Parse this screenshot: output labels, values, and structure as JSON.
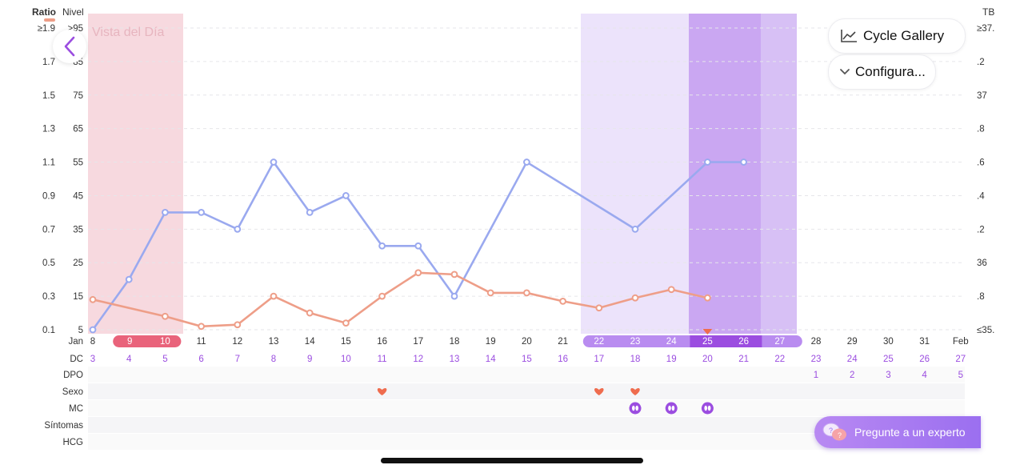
{
  "header": {
    "left_axis_title": "Ratio",
    "level_axis_title": "Nivel",
    "right_axis_title": "TB",
    "day_view_label": "Vista del Día"
  },
  "buttons": {
    "cycle_gallery": "Cycle Gallery",
    "configure": "Configura...",
    "expert": "Pregunte a un experto"
  },
  "colors": {
    "blue_series": "#9aa9ef",
    "orange_series": "#ee9e88",
    "period": "#f7d9df",
    "fertile_light": "#ece3fb",
    "fertile_mid": "#d7c0f5",
    "ovulation_dark": "#caa7f2",
    "accent_purple": "#9b4de0",
    "period_pill": "#e9637b"
  },
  "chart_data": {
    "type": "line",
    "title": "",
    "left_ticks": [
      "≥1.9",
      "1.7",
      "1.5",
      "1.3",
      "1.1",
      "0.9",
      "0.7",
      "0.5",
      "0.3",
      "0.1"
    ],
    "level_ticks": [
      ">95",
      "85",
      "75",
      "65",
      "55",
      "45",
      "35",
      "25",
      "15",
      "5"
    ],
    "right_ticks": [
      "≥37.",
      ".2",
      "37",
      ".8",
      ".6",
      ".4",
      ".2",
      "36",
      ".8",
      "≤35."
    ],
    "ylim": [
      5,
      95
    ],
    "x": [
      "8",
      "9",
      "10",
      "11",
      "12",
      "13",
      "14",
      "15",
      "16",
      "17",
      "18",
      "19",
      "20",
      "21",
      "22",
      "23",
      "24",
      "25",
      "26",
      "27",
      "28",
      "29",
      "30",
      "31",
      "Feb"
    ],
    "month_label": "Jan",
    "series": [
      {
        "values": [
          5,
          20,
          40,
          40,
          35,
          55,
          40,
          45,
          30,
          30,
          15,
          null,
          55,
          null,
          null,
          35,
          null,
          55,
          55,
          null,
          null,
          null,
          null,
          null,
          null
        ]
      },
      {
        "values": [
          14,
          null,
          9,
          6,
          6.5,
          15,
          10,
          7,
          15,
          22,
          21.5,
          16,
          16,
          13.5,
          11.5,
          14.5,
          17,
          14.5,
          null,
          null,
          null,
          null,
          null,
          null,
          null
        ]
      }
    ],
    "rows": {
      "dc_label": "DC",
      "dc": [
        "3",
        "4",
        "5",
        "6",
        "7",
        "8",
        "9",
        "10",
        "11",
        "12",
        "13",
        "14",
        "15",
        "16",
        "17",
        "18",
        "19",
        "20",
        "21",
        "22",
        "23",
        "24",
        "25",
        "26",
        "27"
      ],
      "dpo_label": "DPO",
      "dpo": [
        "",
        "",
        "",
        "",
        "",
        "",
        "",
        "",
        "",
        "",
        "",
        "",
        "",
        "",
        "",
        "",
        "",
        "",
        "",
        "",
        "1",
        "2",
        "3",
        "4",
        "5"
      ],
      "sexo_label": "Sexo",
      "mc_label": "MC",
      "sintomas_label": "Síntomas",
      "hcg_label": "HCG"
    },
    "period_pill_days": [
      "9",
      "10"
    ],
    "fertile_pill_days": [
      "22",
      "23",
      "24",
      "25",
      "26",
      "27"
    ],
    "heart_days": [
      "16",
      "22",
      "23"
    ],
    "mc_days": [
      "23",
      "24",
      "25"
    ],
    "today": "25"
  },
  "icons": {
    "back": "chevron-left-icon",
    "gallery": "line-chart-icon",
    "configure": "chevron-down-icon",
    "expert": "chat-bubbles-icon"
  }
}
